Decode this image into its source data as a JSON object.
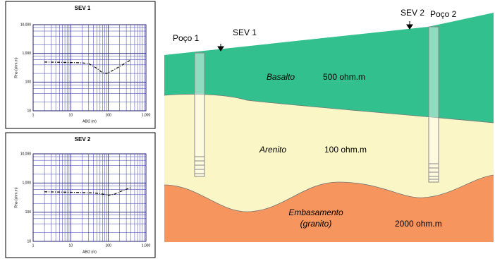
{
  "chart_data": [
    {
      "type": "line",
      "title": "SEV 1",
      "x_label": "AB/2 (m)",
      "y_label": "Rho (ohm.m)",
      "xscale": "log",
      "yscale": "log",
      "x": [
        2,
        5,
        10,
        20,
        30,
        50,
        70,
        90,
        120,
        200,
        400
      ],
      "values": [
        500,
        490,
        480,
        470,
        440,
        300,
        210,
        200,
        240,
        350,
        600
      ],
      "color": "#000000",
      "xlim": [
        1,
        1000
      ],
      "xticks": [
        1,
        10,
        100,
        {
          "value": 1000,
          "label": "1,000"
        }
      ],
      "ylim": [
        10,
        10000
      ],
      "yticks": [
        10,
        100,
        {
          "value": 1000,
          "label": "1,000"
        },
        {
          "value": 10000,
          "label": "10,000"
        }
      ],
      "grid": true
    },
    {
      "type": "line",
      "title": "SEV 2",
      "x_label": "AB/2 (m)",
      "y_label": "Rho (ohm.m)",
      "xscale": "log",
      "yscale": "log",
      "x": [
        2,
        5,
        10,
        20,
        40,
        70,
        100,
        150,
        200,
        400
      ],
      "values": [
        500,
        490,
        480,
        470,
        460,
        420,
        380,
        420,
        500,
        700
      ],
      "color": "#000000",
      "xlim": [
        1,
        1000
      ],
      "xticks": [
        1,
        10,
        100,
        {
          "value": 1000,
          "label": "1,000"
        }
      ],
      "ylim": [
        10,
        10000
      ],
      "yticks": [
        10,
        100,
        {
          "value": 1000,
          "label": "1,000"
        },
        {
          "value": 10000,
          "label": "10,000"
        }
      ],
      "grid": true
    }
  ],
  "cross_section": {
    "wells": [
      {
        "label": "Poço 1"
      },
      {
        "label": "Poço 2"
      }
    ],
    "soundings": [
      {
        "label": "SEV 1"
      },
      {
        "label": "SEV 2"
      }
    ],
    "layers": [
      {
        "name": "Basalto",
        "resistivity": "500 ohm.m"
      },
      {
        "name": "Arenito",
        "resistivity": "100 ohm.m"
      },
      {
        "name": "Embasamento",
        "note": "(granito)",
        "resistivity": "2000 ohm.m"
      }
    ]
  }
}
